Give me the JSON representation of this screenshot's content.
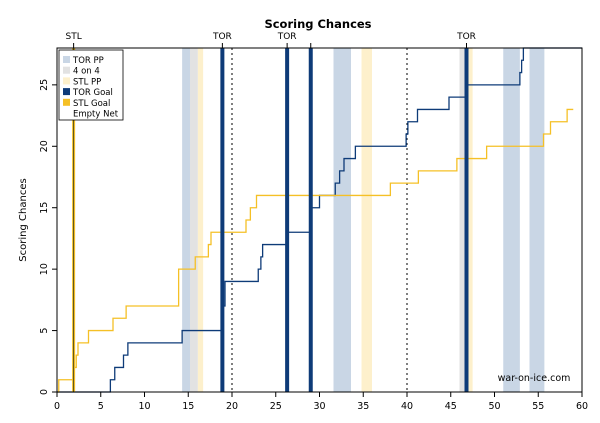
{
  "chart_data": {
    "type": "line",
    "title": "Scoring Chances",
    "xlabel": "",
    "ylabel": "Scoring Chances",
    "xlim": [
      0,
      60
    ],
    "ylim": [
      0,
      28
    ],
    "x_ticks": [
      0,
      5,
      10,
      15,
      20,
      25,
      30,
      35,
      40,
      45,
      50,
      55,
      60
    ],
    "y_ticks": [
      0,
      5,
      10,
      15,
      20,
      25
    ],
    "grid": false,
    "legend_position": "top-left",
    "watermark": "war-on-ice.com",
    "colors": {
      "tor_pp": "#c9d6e5",
      "four_on_four": "#e2e2e2",
      "stl_pp": "#fdf0cc",
      "tor": "#0e3b78",
      "stl": "#f5c026",
      "period_line": "#000000"
    },
    "legend": [
      {
        "label": "TOR PP",
        "color_key": "tor_pp",
        "kind": "box"
      },
      {
        "label": "4 on 4",
        "color_key": "four_on_four",
        "kind": "box"
      },
      {
        "label": "STL PP",
        "color_key": "stl_pp",
        "kind": "box"
      },
      {
        "label": "TOR Goal",
        "color_key": "tor",
        "kind": "box"
      },
      {
        "label": "STL Goal",
        "color_key": "stl",
        "kind": "box"
      },
      {
        "label": "Empty Net",
        "color_key": "",
        "kind": "text"
      }
    ],
    "period_lines": [
      20,
      40,
      60
    ],
    "shaded_regions": [
      {
        "type": "tor_pp",
        "start": 14.3,
        "end": 15.2
      },
      {
        "type": "four_on_four",
        "start": 15.2,
        "end": 16.1
      },
      {
        "type": "stl_pp",
        "start": 16.1,
        "end": 16.7
      },
      {
        "type": "tor_pp",
        "start": 31.6,
        "end": 33.6
      },
      {
        "type": "stl_pp",
        "start": 34.8,
        "end": 36.0
      },
      {
        "type": "four_on_four",
        "start": 46.0,
        "end": 46.6
      },
      {
        "type": "stl_pp",
        "start": 46.6,
        "end": 47.5
      },
      {
        "type": "tor_pp",
        "start": 51.0,
        "end": 52.9
      },
      {
        "type": "tor_pp",
        "start": 54.0,
        "end": 55.7
      }
    ],
    "goals": [
      {
        "team": "STL",
        "time": 1.9,
        "label": "STL"
      },
      {
        "team": "TOR",
        "time": 18.9,
        "label": "TOR"
      },
      {
        "team": "TOR",
        "time": 26.3,
        "label": "TOR"
      },
      {
        "team": "TOR",
        "time": 29.0,
        "label": ""
      },
      {
        "team": "TOR",
        "time": 46.8,
        "label": "TOR"
      }
    ],
    "series": [
      {
        "name": "TOR",
        "color_key": "tor",
        "points": [
          [
            0,
            0
          ],
          [
            6.1,
            1
          ],
          [
            6.6,
            2
          ],
          [
            7.6,
            3
          ],
          [
            8.1,
            4
          ],
          [
            14.3,
            4
          ],
          [
            14.3,
            5
          ],
          [
            18.9,
            5
          ],
          [
            18.9,
            7
          ],
          [
            19.2,
            9
          ],
          [
            23.0,
            10
          ],
          [
            23.3,
            11
          ],
          [
            23.5,
            12
          ],
          [
            26.3,
            12
          ],
          [
            26.3,
            13
          ],
          [
            28.8,
            13
          ],
          [
            28.9,
            14
          ],
          [
            29.1,
            15
          ],
          [
            30.0,
            16
          ],
          [
            31.8,
            17
          ],
          [
            32.3,
            18
          ],
          [
            32.8,
            19
          ],
          [
            34.1,
            20
          ],
          [
            39.8,
            20
          ],
          [
            39.9,
            21
          ],
          [
            40.1,
            22
          ],
          [
            41.2,
            23
          ],
          [
            44.8,
            24
          ],
          [
            46.8,
            24
          ],
          [
            46.8,
            25
          ],
          [
            52.7,
            25
          ],
          [
            52.9,
            26
          ],
          [
            53.1,
            27
          ],
          [
            53.3,
            28
          ],
          [
            60,
            28
          ]
        ]
      },
      {
        "name": "STL",
        "color_key": "stl",
        "points": [
          [
            0,
            0
          ],
          [
            0.2,
            1
          ],
          [
            1.9,
            1
          ],
          [
            1.9,
            2
          ],
          [
            2.2,
            3
          ],
          [
            2.4,
            4
          ],
          [
            3.6,
            5
          ],
          [
            6.4,
            6
          ],
          [
            7.9,
            7
          ],
          [
            13.6,
            7
          ],
          [
            13.9,
            9
          ],
          [
            13.9,
            10
          ],
          [
            15.6,
            10
          ],
          [
            15.8,
            11
          ],
          [
            17.3,
            12
          ],
          [
            17.6,
            13
          ],
          [
            21.3,
            13
          ],
          [
            21.6,
            14
          ],
          [
            22.1,
            15
          ],
          [
            22.8,
            16
          ],
          [
            38.0,
            16
          ],
          [
            38.1,
            17
          ],
          [
            41.3,
            17
          ],
          [
            41.3,
            18
          ],
          [
            45.5,
            18
          ],
          [
            45.7,
            19
          ],
          [
            49.0,
            19
          ],
          [
            49.1,
            20
          ],
          [
            55.3,
            20
          ],
          [
            55.6,
            21
          ],
          [
            56.4,
            22
          ],
          [
            58.2,
            22
          ],
          [
            58.3,
            23
          ],
          [
            59.0,
            23
          ]
        ]
      }
    ]
  }
}
